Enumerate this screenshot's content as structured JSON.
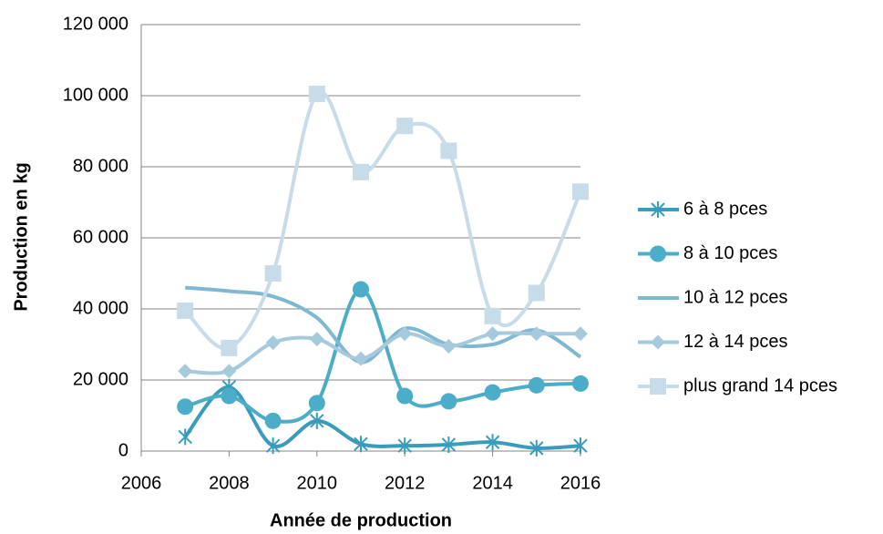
{
  "chart_data": {
    "type": "line",
    "smooth": true,
    "xlabel": "Année de production",
    "ylabel": "Production en kg",
    "x": [
      2007,
      2008,
      2009,
      2010,
      2011,
      2012,
      2013,
      2014,
      2015,
      2016
    ],
    "series": [
      {
        "name": "6 à 8 pces",
        "color": "#3a9cbc",
        "marker": "star",
        "values": [
          4000,
          18000,
          1500,
          8500,
          2000,
          1500,
          1800,
          2500,
          800,
          1500
        ]
      },
      {
        "name": "8 à 10 pces",
        "color": "#4badc8",
        "marker": "circle",
        "values": [
          12500,
          15500,
          8500,
          13500,
          45500,
          15500,
          14000,
          16500,
          18500,
          19000
        ]
      },
      {
        "name": "10 à 12 pces",
        "color": "#7fb8d0",
        "marker": "none",
        "values": [
          46000,
          45000,
          43500,
          37500,
          25000,
          34500,
          30000,
          30000,
          34000,
          26500
        ]
      },
      {
        "name": "12 à 14 pces",
        "color": "#a6cadb",
        "marker": "diamond",
        "values": [
          22500,
          22500,
          30500,
          31500,
          26000,
          33000,
          29500,
          33000,
          33000,
          33000
        ]
      },
      {
        "name": "plus grand 14 pces",
        "color": "#c7dce8",
        "marker": "square",
        "values": [
          39500,
          29000,
          50000,
          100500,
          78500,
          91500,
          84500,
          38000,
          44500,
          73000
        ]
      }
    ],
    "xlim": [
      2006,
      2016
    ],
    "xticks": [
      2006,
      2008,
      2010,
      2012,
      2014,
      2016
    ],
    "ylim": [
      0,
      120000
    ],
    "yticks": [
      0,
      {
        "value": 20000,
        "label": "20 000"
      },
      {
        "value": 40000,
        "label": "40 000"
      },
      {
        "value": 60000,
        "label": "60 000"
      },
      {
        "value": 80000,
        "label": "80 000"
      },
      {
        "value": 100000,
        "label": "100 000"
      },
      {
        "value": 120000,
        "label": "120 000"
      }
    ],
    "grid": true,
    "legend": "right"
  }
}
